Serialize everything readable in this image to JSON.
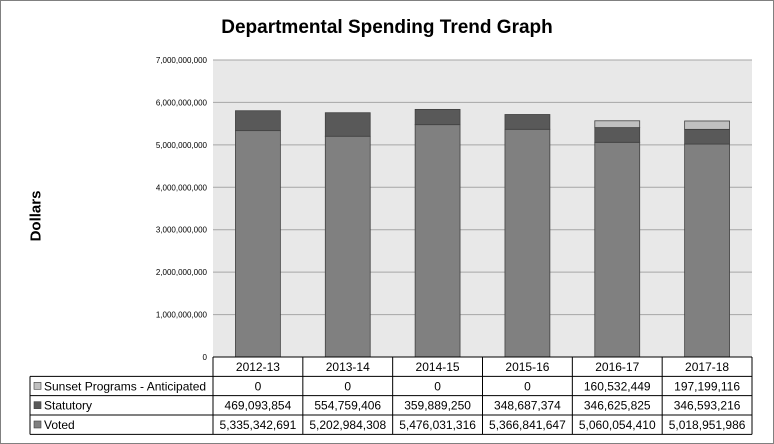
{
  "chart_data": {
    "type": "bar",
    "stacked": true,
    "title": "Departmental Spending Trend Graph",
    "ylabel": "Dollars",
    "xlabel": "",
    "ylim": [
      0,
      7000000000
    ],
    "yticks": [
      {
        "value": 0,
        "label": "0"
      },
      {
        "value": 1000000000,
        "label": "1,000,000,000"
      },
      {
        "value": 2000000000,
        "label": "2,000,000,000"
      },
      {
        "value": 3000000000,
        "label": "3,000,000,000"
      },
      {
        "value": 4000000000,
        "label": "4,000,000,000"
      },
      {
        "value": 5000000000,
        "label": "5,000,000,000"
      },
      {
        "value": 6000000000,
        "label": "6,000,000,000"
      },
      {
        "value": 7000000000,
        "label": "7,000,000,000"
      }
    ],
    "grid": true,
    "legend": "data-table",
    "categories": [
      "2012-13",
      "2013-14",
      "2014-15",
      "2015-16",
      "2016-17",
      "2017-18"
    ],
    "series": [
      {
        "name": "Sunset Programs - Anticipated",
        "color": "#c0c0c0",
        "values": [
          0,
          0,
          0,
          0,
          160532449,
          197199116
        ],
        "labels": [
          "0",
          "0",
          "0",
          "0",
          "160,532,449",
          "197,199,116"
        ]
      },
      {
        "name": "Statutory",
        "color": "#595959",
        "values": [
          469093854,
          554759406,
          359889250,
          348687374,
          346625825,
          346593216
        ],
        "labels": [
          "469,093,854",
          "554,759,406",
          "359,889,250",
          "348,687,374",
          "346,625,825",
          "346,593,216"
        ]
      },
      {
        "name": "Voted",
        "color": "#808080",
        "values": [
          5335342691,
          5202984308,
          5476031316,
          5366841647,
          5060054410,
          5018951986
        ],
        "labels": [
          "5,335,342,691",
          "5,202,984,308",
          "5,476,031,316",
          "5,366,841,647",
          "5,060,054,410",
          "5,018,951,986"
        ]
      }
    ],
    "stack_order_bottom_to_top": [
      "Voted",
      "Statutory",
      "Sunset Programs - Anticipated"
    ],
    "plot_background": "#e8e8e8"
  }
}
